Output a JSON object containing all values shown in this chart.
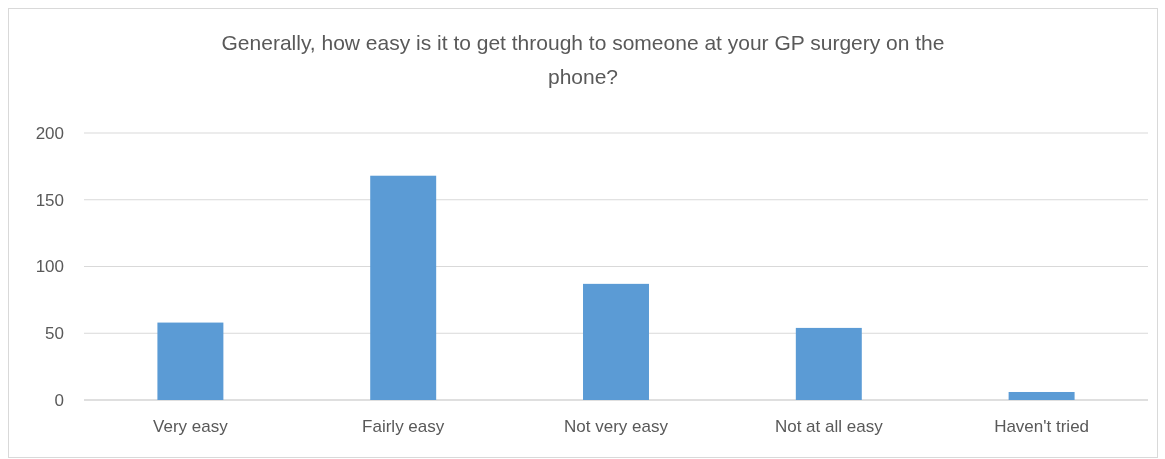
{
  "chart_data": {
    "type": "bar",
    "title": "Generally, how easy is it to get through to someone at your GP surgery on the phone?",
    "categories": [
      "Very easy",
      "Fairly easy",
      "Not very easy",
      "Not at all easy",
      "Haven't tried"
    ],
    "values": [
      58,
      168,
      87,
      54,
      6
    ],
    "color": "#5b9bd5",
    "ylim": [
      0,
      200
    ],
    "yticks": [
      0,
      50,
      100,
      150,
      200
    ],
    "grid": "y"
  }
}
